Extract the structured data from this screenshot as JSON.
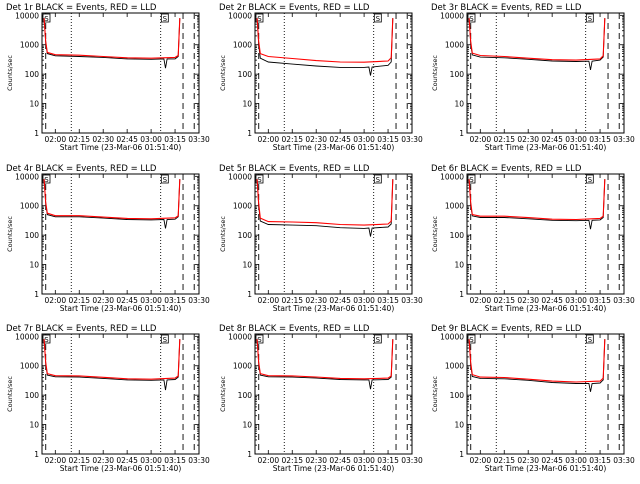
{
  "chart_data": [
    {
      "type": "line",
      "title": "Det 1r BLACK = Events, RED = LLD",
      "xlabel": "Start Time (23-Mar-06 01:51:40)",
      "ylabel": "Counts/sec",
      "yscale": "log",
      "ylim": [
        1,
        12000
      ],
      "xlim": [
        "01:51:40",
        "03:30:00"
      ],
      "xticks": [
        "02:00",
        "02:15",
        "02:30",
        "02:45",
        "03:00",
        "03:15",
        "03:30"
      ],
      "yticks": [
        "1",
        "10",
        "100",
        "1000",
        "10000"
      ],
      "grid": false,
      "markers": {
        "dotted": [
          "02:10",
          "03:06"
        ],
        "dashed": [
          "01:54",
          "03:20",
          "03:27"
        ],
        "boxes": [
          "S",
          "S"
        ]
      },
      "series": [
        {
          "color": "#000000",
          "x": [
            "01:53",
            "01:54",
            "01:55",
            "02:00",
            "02:15",
            "02:30",
            "02:45",
            "03:00",
            "03:08",
            "03:09",
            "03:10",
            "03:15",
            "03:17",
            "03:18"
          ],
          "y": [
            8000,
            1200,
            500,
            420,
            400,
            370,
            330,
            320,
            330,
            160,
            330,
            330,
            400,
            8000
          ]
        },
        {
          "color": "#ff0000",
          "x": [
            "01:53",
            "01:54",
            "01:55",
            "02:00",
            "02:15",
            "02:30",
            "02:45",
            "03:00",
            "03:15",
            "03:17",
            "03:18"
          ],
          "y": [
            8000,
            1300,
            550,
            460,
            440,
            400,
            360,
            350,
            370,
            430,
            8000
          ]
        }
      ]
    },
    {
      "type": "line",
      "title": "Det 2r BLACK = Events, RED = LLD",
      "xlabel": "Start Time (23-Mar-06 01:51:40)",
      "ylabel": "Counts/sec",
      "yscale": "log",
      "ylim": [
        1,
        12000
      ],
      "xlim": [
        "01:51:40",
        "03:30:00"
      ],
      "xticks": [
        "02:00",
        "02:15",
        "02:30",
        "02:45",
        "03:00",
        "03:15",
        "03:30"
      ],
      "yticks": [
        "1",
        "10",
        "100",
        "1000",
        "10000"
      ],
      "grid": false,
      "markers": {
        "dotted": [
          "02:10",
          "03:06"
        ],
        "dashed": [
          "01:54",
          "03:20",
          "03:27"
        ],
        "boxes": [
          "S",
          "S"
        ]
      },
      "series": [
        {
          "color": "#000000",
          "x": [
            "01:53",
            "01:54",
            "01:55",
            "02:00",
            "02:15",
            "02:30",
            "02:45",
            "03:00",
            "03:03",
            "03:04",
            "03:05",
            "03:15",
            "03:17",
            "03:18"
          ],
          "y": [
            8000,
            1000,
            350,
            260,
            220,
            190,
            170,
            170,
            175,
            90,
            175,
            200,
            260,
            8000
          ]
        },
        {
          "color": "#ff0000",
          "x": [
            "01:53",
            "01:54",
            "01:55",
            "02:00",
            "02:15",
            "02:30",
            "02:45",
            "03:00",
            "03:15",
            "03:17",
            "03:18"
          ],
          "y": [
            8000,
            1300,
            500,
            400,
            340,
            290,
            260,
            255,
            280,
            360,
            8000
          ]
        }
      ]
    },
    {
      "type": "line",
      "title": "Det 3r BLACK = Events, RED = LLD",
      "xlabel": "Start Time (23-Mar-06 01:51:40)",
      "ylabel": "Counts/sec",
      "yscale": "log",
      "ylim": [
        1,
        12000
      ],
      "xlim": [
        "01:51:40",
        "03:30:00"
      ],
      "xticks": [
        "02:00",
        "02:15",
        "02:30",
        "02:45",
        "03:00",
        "03:15",
        "03:30"
      ],
      "yticks": [
        "1",
        "10",
        "100",
        "1000",
        "10000"
      ],
      "grid": false,
      "markers": {
        "dotted": [
          "02:10",
          "03:06"
        ],
        "dashed": [
          "01:54",
          "03:20",
          "03:27"
        ],
        "boxes": [
          "S",
          "S"
        ]
      },
      "series": [
        {
          "color": "#000000",
          "x": [
            "01:53",
            "01:54",
            "01:55",
            "02:00",
            "02:15",
            "02:30",
            "02:45",
            "03:00",
            "03:08",
            "03:09",
            "03:10",
            "03:15",
            "03:17",
            "03:18"
          ],
          "y": [
            8000,
            1100,
            450,
            380,
            360,
            320,
            280,
            270,
            275,
            140,
            275,
            300,
            380,
            8000
          ]
        },
        {
          "color": "#ff0000",
          "x": [
            "01:53",
            "01:54",
            "01:55",
            "02:00",
            "02:15",
            "02:30",
            "02:45",
            "03:00",
            "03:15",
            "03:17",
            "03:18"
          ],
          "y": [
            8000,
            1300,
            520,
            430,
            400,
            350,
            310,
            300,
            330,
            420,
            8000
          ]
        }
      ]
    },
    {
      "type": "line",
      "title": "Det 4r BLACK = Events, RED = LLD",
      "xlabel": "Start Time (23-Mar-06 01:51:40)",
      "ylabel": "Counts/sec",
      "yscale": "log",
      "ylim": [
        1,
        12000
      ],
      "xlim": [
        "01:51:40",
        "03:30:00"
      ],
      "xticks": [
        "02:00",
        "02:15",
        "02:30",
        "02:45",
        "03:00",
        "03:15",
        "03:30"
      ],
      "yticks": [
        "1",
        "10",
        "100",
        "1000",
        "10000"
      ],
      "grid": false,
      "markers": {
        "dotted": [
          "02:10",
          "03:06"
        ],
        "dashed": [
          "01:54",
          "03:20",
          "03:27"
        ],
        "boxes": [
          "S",
          "S"
        ]
      },
      "series": [
        {
          "color": "#000000",
          "x": [
            "01:53",
            "01:54",
            "01:55",
            "02:00",
            "02:15",
            "02:30",
            "02:45",
            "03:00",
            "03:08",
            "03:09",
            "03:10",
            "03:15",
            "03:17",
            "03:18"
          ],
          "y": [
            8000,
            1200,
            500,
            420,
            420,
            380,
            340,
            330,
            340,
            170,
            340,
            350,
            420,
            8000
          ]
        },
        {
          "color": "#ff0000",
          "x": [
            "01:53",
            "01:54",
            "01:55",
            "02:00",
            "02:15",
            "02:30",
            "02:45",
            "03:00",
            "03:15",
            "03:17",
            "03:18"
          ],
          "y": [
            8000,
            1300,
            560,
            460,
            460,
            410,
            370,
            360,
            390,
            450,
            8000
          ]
        }
      ]
    },
    {
      "type": "line",
      "title": "Det 5r BLACK = Events, RED = LLD",
      "xlabel": "Start Time (23-Mar-06 01:51:40)",
      "ylabel": "Counts/sec",
      "yscale": "log",
      "ylim": [
        1,
        12000
      ],
      "xlim": [
        "01:51:40",
        "03:30:00"
      ],
      "xticks": [
        "02:00",
        "02:15",
        "02:30",
        "02:45",
        "03:00",
        "03:15",
        "03:30"
      ],
      "yticks": [
        "1",
        "10",
        "100",
        "1000",
        "10000"
      ],
      "grid": false,
      "markers": {
        "dotted": [
          "02:10",
          "03:06"
        ],
        "dashed": [
          "01:54",
          "03:20",
          "03:27"
        ],
        "boxes": [
          "S",
          "S"
        ]
      },
      "series": [
        {
          "color": "#000000",
          "x": [
            "01:53",
            "01:54",
            "01:55",
            "02:00",
            "02:15",
            "02:30",
            "02:45",
            "03:00",
            "03:03",
            "03:04",
            "03:05",
            "03:15",
            "03:17",
            "03:18"
          ],
          "y": [
            8000,
            1000,
            300,
            230,
            220,
            210,
            180,
            170,
            175,
            90,
            175,
            190,
            240,
            8000
          ]
        },
        {
          "color": "#ff0000",
          "x": [
            "01:53",
            "01:54",
            "01:55",
            "02:00",
            "02:15",
            "02:30",
            "02:45",
            "03:00",
            "03:15",
            "03:17",
            "03:18"
          ],
          "y": [
            8000,
            1200,
            380,
            290,
            280,
            265,
            230,
            220,
            240,
            300,
            8000
          ]
        }
      ]
    },
    {
      "type": "line",
      "title": "Det 6r BLACK = Events, RED = LLD",
      "xlabel": "Start Time (23-Mar-06 01:51:40)",
      "ylabel": "Counts/sec",
      "yscale": "log",
      "ylim": [
        1,
        12000
      ],
      "xlim": [
        "01:51:40",
        "03:30:00"
      ],
      "xticks": [
        "02:00",
        "02:15",
        "02:30",
        "02:45",
        "03:00",
        "03:15",
        "03:30"
      ],
      "yticks": [
        "1",
        "10",
        "100",
        "1000",
        "10000"
      ],
      "grid": false,
      "markers": {
        "dotted": [
          "02:10",
          "03:06"
        ],
        "dashed": [
          "01:54",
          "03:20",
          "03:27"
        ],
        "boxes": [
          "S",
          "S"
        ]
      },
      "series": [
        {
          "color": "#000000",
          "x": [
            "01:53",
            "01:54",
            "01:55",
            "02:00",
            "02:15",
            "02:30",
            "02:45",
            "03:00",
            "03:08",
            "03:09",
            "03:10",
            "03:15",
            "03:17",
            "03:18"
          ],
          "y": [
            8000,
            1100,
            450,
            400,
            400,
            360,
            320,
            310,
            320,
            160,
            320,
            330,
            400,
            8000
          ]
        },
        {
          "color": "#ff0000",
          "x": [
            "01:53",
            "01:54",
            "01:55",
            "02:00",
            "02:15",
            "02:30",
            "02:45",
            "03:00",
            "03:15",
            "03:17",
            "03:18"
          ],
          "y": [
            8000,
            1300,
            500,
            440,
            440,
            395,
            350,
            340,
            370,
            440,
            8000
          ]
        }
      ]
    },
    {
      "type": "line",
      "title": "Det 7r BLACK = Events, RED = LLD",
      "xlabel": "Start Time (23-Mar-06 01:51:40)",
      "ylabel": "Counts/sec",
      "yscale": "log",
      "ylim": [
        1,
        12000
      ],
      "xlim": [
        "01:51:40",
        "03:30:00"
      ],
      "xticks": [
        "02:00",
        "02:15",
        "02:30",
        "02:45",
        "03:00",
        "03:15",
        "03:30"
      ],
      "yticks": [
        "1",
        "10",
        "100",
        "1000",
        "10000"
      ],
      "grid": false,
      "markers": {
        "dotted": [
          "02:10",
          "03:06"
        ],
        "dashed": [
          "01:54",
          "03:20",
          "03:27"
        ],
        "boxes": [
          "S",
          "S"
        ]
      },
      "series": [
        {
          "color": "#000000",
          "x": [
            "01:53",
            "01:54",
            "01:55",
            "02:00",
            "02:15",
            "02:30",
            "02:45",
            "03:00",
            "03:08",
            "03:09",
            "03:10",
            "03:15",
            "03:17",
            "03:18"
          ],
          "y": [
            8000,
            1200,
            480,
            420,
            410,
            370,
            330,
            320,
            330,
            150,
            330,
            340,
            410,
            8000
          ]
        },
        {
          "color": "#ff0000",
          "x": [
            "01:53",
            "01:54",
            "01:55",
            "02:00",
            "02:15",
            "02:30",
            "02:45",
            "03:00",
            "03:15",
            "03:17",
            "03:18"
          ],
          "y": [
            8000,
            1300,
            540,
            460,
            450,
            405,
            360,
            350,
            380,
            450,
            8000
          ]
        }
      ]
    },
    {
      "type": "line",
      "title": "Det 8r BLACK = Events, RED = LLD",
      "xlabel": "Start Time (23-Mar-06 01:51:40)",
      "ylabel": "Counts/sec",
      "yscale": "log",
      "ylim": [
        1,
        12000
      ],
      "xlim": [
        "01:51:40",
        "03:30:00"
      ],
      "xticks": [
        "02:00",
        "02:15",
        "02:30",
        "02:45",
        "03:00",
        "03:15",
        "03:30"
      ],
      "yticks": [
        "1",
        "10",
        "100",
        "1000",
        "10000"
      ],
      "grid": false,
      "markers": {
        "dotted": [
          "02:10",
          "03:06"
        ],
        "dashed": [
          "01:54",
          "03:20",
          "03:27"
        ],
        "boxes": [
          "S",
          "S"
        ]
      },
      "series": [
        {
          "color": "#000000",
          "x": [
            "01:53",
            "01:54",
            "01:55",
            "02:00",
            "02:15",
            "02:30",
            "02:45",
            "03:00",
            "03:03",
            "03:04",
            "03:05",
            "03:15",
            "03:17",
            "03:18"
          ],
          "y": [
            8000,
            1200,
            480,
            420,
            410,
            380,
            340,
            330,
            330,
            160,
            330,
            340,
            410,
            8000
          ]
        },
        {
          "color": "#ff0000",
          "x": [
            "01:53",
            "01:54",
            "01:55",
            "02:00",
            "02:15",
            "02:30",
            "02:45",
            "03:00",
            "03:15",
            "03:17",
            "03:18"
          ],
          "y": [
            8000,
            1300,
            540,
            460,
            450,
            415,
            370,
            360,
            380,
            450,
            8000
          ]
        }
      ]
    },
    {
      "type": "line",
      "title": "Det 9r BLACK = Events, RED = LLD",
      "xlabel": "Start Time (23-Mar-06 01:51:40)",
      "ylabel": "Counts/sec",
      "yscale": "log",
      "ylim": [
        1,
        12000
      ],
      "xlim": [
        "01:51:40",
        "03:30:00"
      ],
      "xticks": [
        "02:00",
        "02:15",
        "02:30",
        "02:45",
        "03:00",
        "03:15",
        "03:30"
      ],
      "yticks": [
        "1",
        "10",
        "100",
        "1000",
        "10000"
      ],
      "grid": false,
      "markers": {
        "dotted": [
          "02:10",
          "03:06"
        ],
        "dashed": [
          "01:54",
          "03:20",
          "03:27"
        ],
        "boxes": [
          "S",
          "S"
        ]
      },
      "series": [
        {
          "color": "#000000",
          "x": [
            "01:53",
            "01:54",
            "01:55",
            "02:00",
            "02:15",
            "02:30",
            "02:45",
            "03:00",
            "03:08",
            "03:09",
            "03:10",
            "03:15",
            "03:17",
            "03:18"
          ],
          "y": [
            8000,
            1100,
            430,
            370,
            360,
            320,
            270,
            250,
            250,
            130,
            250,
            260,
            330,
            8000
          ]
        },
        {
          "color": "#ff0000",
          "x": [
            "01:53",
            "01:54",
            "01:55",
            "02:00",
            "02:15",
            "02:30",
            "02:45",
            "03:00",
            "03:15",
            "03:17",
            "03:18"
          ],
          "y": [
            8000,
            1300,
            500,
            410,
            400,
            350,
            300,
            280,
            300,
            380,
            8000
          ]
        }
      ]
    }
  ]
}
